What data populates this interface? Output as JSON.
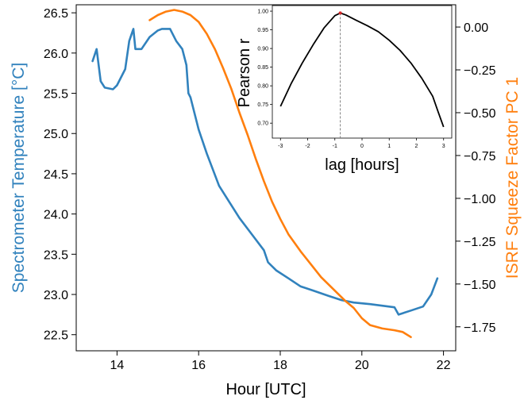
{
  "colors": {
    "temperature": "#3182bd",
    "squeeze": "#ff7f0e",
    "inset_line": "#000000",
    "inset_marker": "#d62728",
    "axes": "#000000"
  },
  "chart_data": [
    {
      "type": "line",
      "xlabel": "Hour [UTC]",
      "ylabel": "Spectrometer Temperature [°C]",
      "y2label": "ISRF Squeeze Factor PC 1",
      "xlim": [
        13.0,
        22.3
      ],
      "ylim": [
        22.3,
        26.6
      ],
      "y2lim": [
        -1.89,
        0.13
      ],
      "x_ticks": [
        "14",
        "16",
        "18",
        "20",
        "22"
      ],
      "y_ticks": [
        "22.5",
        "23.0",
        "23.5",
        "24.0",
        "24.5",
        "25.0",
        "25.5",
        "26.0",
        "26.5"
      ],
      "y2_ticks": [
        "0.00",
        "−0.25",
        "−0.50",
        "−0.75",
        "−1.00",
        "−1.25",
        "−1.50",
        "−1.75"
      ],
      "grid": false,
      "series": [
        {
          "axis": "left",
          "x": [
            13.4,
            13.5,
            13.6,
            13.7,
            13.9,
            14.0,
            14.2,
            14.3,
            14.4,
            14.45,
            14.6,
            14.8,
            15.0,
            15.1,
            15.3,
            15.45,
            15.6,
            15.7,
            15.75,
            15.8,
            16.0,
            16.2,
            16.5,
            17.0,
            17.3,
            17.6,
            17.7,
            17.9,
            18.2,
            18.5,
            18.8,
            19.2,
            19.5,
            19.8,
            20.2,
            20.5,
            20.8,
            20.9,
            21.2,
            21.5,
            21.7,
            21.85
          ],
          "y": [
            25.9,
            26.05,
            25.65,
            25.57,
            25.55,
            25.6,
            25.8,
            26.15,
            26.3,
            26.05,
            26.05,
            26.2,
            26.28,
            26.3,
            26.3,
            26.15,
            26.05,
            25.85,
            25.5,
            25.45,
            25.05,
            24.75,
            24.35,
            23.95,
            23.75,
            23.55,
            23.4,
            23.3,
            23.2,
            23.1,
            23.05,
            22.98,
            22.93,
            22.9,
            22.88,
            22.86,
            22.84,
            22.75,
            22.8,
            22.85,
            23.0,
            23.2
          ]
        },
        {
          "axis": "right",
          "x": [
            14.8,
            15.0,
            15.2,
            15.4,
            15.6,
            15.8,
            16.0,
            16.2,
            16.4,
            16.6,
            16.8,
            17.0,
            17.2,
            17.4,
            17.6,
            17.8,
            18.0,
            18.2,
            18.5,
            18.8,
            19.0,
            19.3,
            19.6,
            19.8,
            20.0,
            20.2,
            20.5,
            20.8,
            21.0,
            21.2
          ],
          "y": [
            0.04,
            0.07,
            0.09,
            0.1,
            0.09,
            0.07,
            0.03,
            -0.04,
            -0.13,
            -0.24,
            -0.36,
            -0.5,
            -0.63,
            -0.77,
            -0.9,
            -1.02,
            -1.12,
            -1.21,
            -1.31,
            -1.4,
            -1.46,
            -1.53,
            -1.6,
            -1.64,
            -1.7,
            -1.74,
            -1.76,
            -1.77,
            -1.78,
            -1.81
          ]
        }
      ]
    },
    {
      "type": "line",
      "xlabel": "lag [hours]",
      "ylabel": "Pearson r",
      "xlim": [
        -3.3,
        3.3
      ],
      "ylim": [
        0.66,
        1.015
      ],
      "x_ticks": [
        "-3",
        "-2",
        "-1",
        "0",
        "1",
        "2",
        "3"
      ],
      "y_ticks": [
        "0.70",
        "0.75",
        "0.80",
        "0.85",
        "0.90",
        "0.95",
        "1.00"
      ],
      "grid": false,
      "peak_lag": -0.8,
      "peak_r": 0.995,
      "series": [
        {
          "x": [
            -3.0,
            -2.6,
            -2.2,
            -1.8,
            -1.4,
            -1.0,
            -0.8,
            -0.6,
            -0.2,
            0.2,
            0.6,
            1.0,
            1.4,
            1.8,
            2.2,
            2.6,
            2.8,
            3.0
          ],
          "y": [
            0.745,
            0.807,
            0.861,
            0.91,
            0.955,
            0.988,
            0.995,
            0.99,
            0.975,
            0.961,
            0.945,
            0.922,
            0.895,
            0.861,
            0.82,
            0.772,
            0.73,
            0.69
          ]
        }
      ]
    }
  ]
}
